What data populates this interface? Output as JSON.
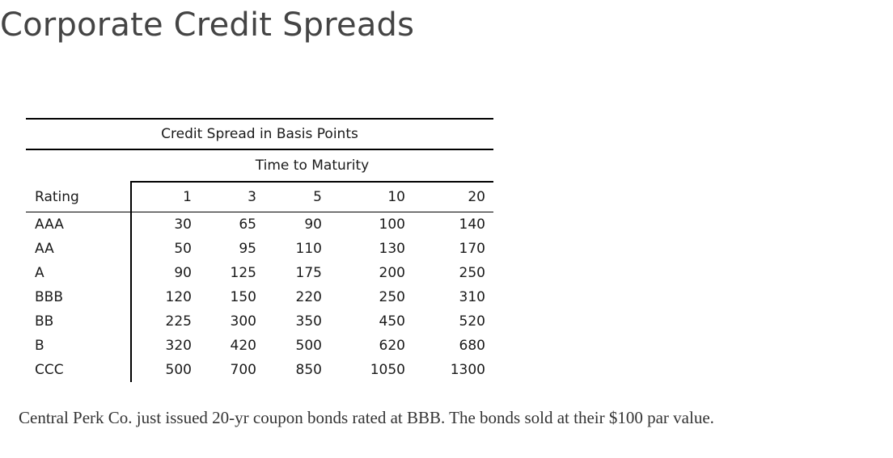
{
  "page": {
    "title": "Corporate Credit Spreads"
  },
  "table": {
    "title": "Credit Spread in Basis Points",
    "subheader": "Time to Maturity",
    "rating_header": "Rating",
    "maturities": [
      "1",
      "3",
      "5",
      "10",
      "20"
    ],
    "rows": [
      {
        "rating": "AAA",
        "values": [
          "30",
          "65",
          "90",
          "100",
          "140"
        ]
      },
      {
        "rating": "AA",
        "values": [
          "50",
          "95",
          "110",
          "130",
          "170"
        ]
      },
      {
        "rating": "A",
        "values": [
          "90",
          "125",
          "175",
          "200",
          "250"
        ]
      },
      {
        "rating": "BBB",
        "values": [
          "120",
          "150",
          "220",
          "250",
          "310"
        ]
      },
      {
        "rating": "BB",
        "values": [
          "225",
          "300",
          "350",
          "450",
          "520"
        ]
      },
      {
        "rating": "B",
        "values": [
          "320",
          "420",
          "500",
          "620",
          "680"
        ]
      },
      {
        "rating": "CCC",
        "values": [
          "500",
          "700",
          "850",
          "1050",
          "1300"
        ]
      }
    ]
  },
  "text": {
    "description": "Central Perk Co. just issued 20-yr coupon bonds rated at BBB.  The bonds sold at their $100 par value."
  }
}
